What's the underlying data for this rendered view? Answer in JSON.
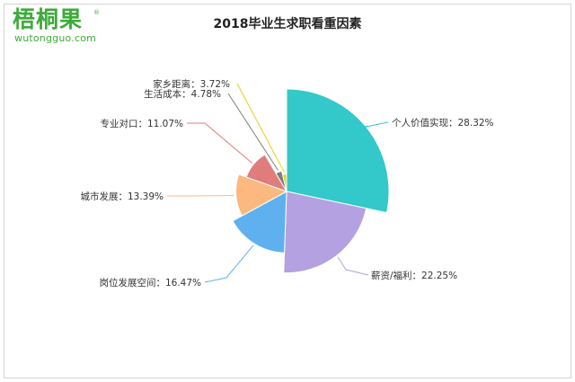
{
  "logo": {
    "name": "梧桐果",
    "registered": "®",
    "url": "wutongguo.com"
  },
  "chart_data": {
    "type": "pie",
    "variant": "rose",
    "title": "2018毕业生求职看重因素",
    "slices": [
      {
        "name": "个人价值实现",
        "value": 28.32,
        "display": "个人价值实现：28.32%",
        "color": "#33c8c9"
      },
      {
        "name": "薪资/福利",
        "value": 22.25,
        "display": "薪资/福利：22.25%",
        "color": "#b3a1e1"
      },
      {
        "name": "岗位发展空间",
        "value": 16.47,
        "display": "岗位发展空间：16.47%",
        "color": "#5fb0ee"
      },
      {
        "name": "城市发展",
        "value": 13.39,
        "display": "城市发展：13.39%",
        "color": "#fbb97f"
      },
      {
        "name": "专业对口",
        "value": 11.07,
        "display": "专业对口：11.07%",
        "color": "#e07c7b"
      },
      {
        "name": "生活成本",
        "value": 4.78,
        "display": "生活成本：4.78%",
        "color": "#7f7f7f"
      },
      {
        "name": "家乡距离",
        "value": 3.72,
        "display": "家乡距离：3.72%",
        "color": "#e6cf1f"
      }
    ],
    "legend": "none"
  }
}
